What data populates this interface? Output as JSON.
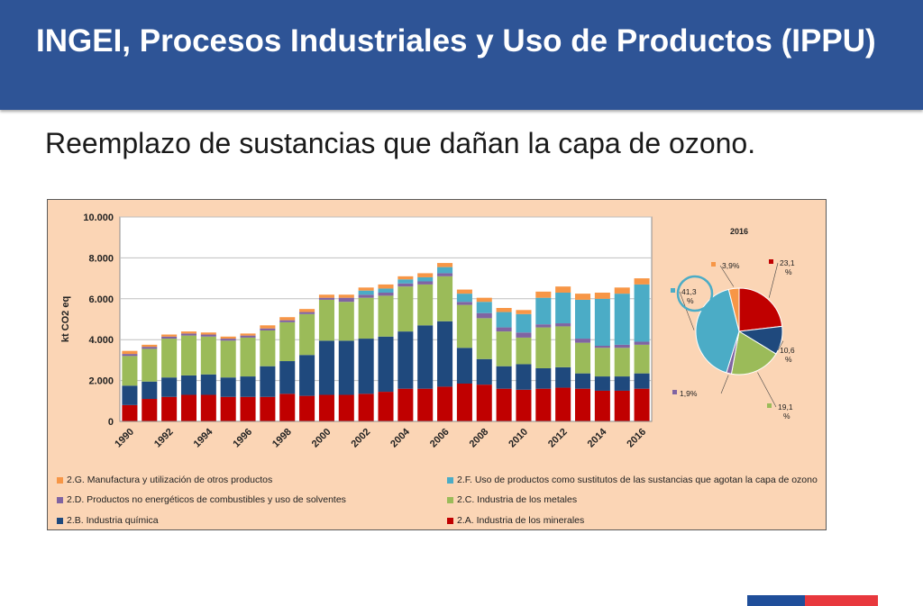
{
  "header": {
    "title": "INGEI, Procesos Industriales y Uso de Productos (IPPU)"
  },
  "subtitle": "Reemplazo de sustancias que dañan la capa de ozono.",
  "colors": {
    "header": "#2e5496",
    "panel": "#fbd5b5",
    "2A": "#c00000",
    "2B": "#1f497d",
    "2C": "#9bbb59",
    "2D": "#8064a2",
    "2F": "#4bacc6",
    "2G": "#f79646"
  },
  "chart_data": [
    {
      "type": "bar",
      "stacked": true,
      "ylabel": "kt CO2 eq",
      "ylim": [
        0,
        10000
      ],
      "yticks": [
        "0",
        "2.000",
        "4.000",
        "6.000",
        "8.000",
        "10.000"
      ],
      "grid": true,
      "legend_position": "bottom",
      "categories": [
        "1990",
        "1991",
        "1992",
        "1993",
        "1994",
        "1995",
        "1996",
        "1997",
        "1998",
        "1999",
        "2000",
        "2001",
        "2002",
        "2003",
        "2004",
        "2005",
        "2006",
        "2007",
        "2008",
        "2009",
        "2010",
        "2011",
        "2012",
        "2013",
        "2014",
        "2015",
        "2016"
      ],
      "xtick_labels": [
        "1990",
        "1992",
        "1994",
        "1996",
        "1998",
        "2000",
        "2002",
        "2004",
        "2006",
        "2008",
        "2010",
        "2012",
        "2014",
        "2016"
      ],
      "series": [
        {
          "name": "2.A. Industria de los minerales",
          "key": "2A",
          "values": [
            800,
            1100,
            1200,
            1300,
            1300,
            1200,
            1200,
            1200,
            1350,
            1250,
            1300,
            1300,
            1350,
            1450,
            1600,
            1600,
            1700,
            1850,
            1800,
            1600,
            1550,
            1600,
            1650,
            1600,
            1500,
            1500,
            1600
          ]
        },
        {
          "name": "2.B. Industria química",
          "key": "2B",
          "values": [
            950,
            850,
            950,
            950,
            1000,
            950,
            1000,
            1500,
            1600,
            2000,
            2650,
            2650,
            2700,
            2700,
            2800,
            3100,
            3200,
            1750,
            1250,
            1100,
            1250,
            1000,
            1000,
            750,
            700,
            700,
            750
          ]
        },
        {
          "name": "2.C. Industria de los metales",
          "key": "2C",
          "values": [
            1450,
            1600,
            1900,
            1950,
            1850,
            1800,
            1900,
            1750,
            1900,
            2000,
            2000,
            1900,
            2000,
            2000,
            2200,
            2000,
            2200,
            2100,
            2000,
            1700,
            1300,
            2000,
            2000,
            1500,
            1400,
            1400,
            1400
          ]
        },
        {
          "name": "2.D. Productos no energéticos de combustibles y uso de solventes",
          "key": "2D",
          "values": [
            100,
            100,
            100,
            100,
            100,
            100,
            100,
            100,
            100,
            100,
            100,
            200,
            150,
            150,
            150,
            150,
            150,
            150,
            250,
            200,
            250,
            150,
            150,
            200,
            100,
            150,
            150
          ]
        },
        {
          "name": "2.F. Uso de productos como sustitutos de las sustancias que agotan la capa de ozono",
          "key": "2F",
          "values": [
            0,
            0,
            0,
            0,
            0,
            0,
            0,
            0,
            0,
            0,
            0,
            0,
            200,
            200,
            200,
            200,
            300,
            400,
            550,
            750,
            900,
            1300,
            1500,
            1900,
            2300,
            2500,
            2800
          ]
        },
        {
          "name": "2.G. Manufactura y utilización de otros productos",
          "key": "2G",
          "values": [
            150,
            100,
            100,
            100,
            100,
            100,
            100,
            150,
            150,
            150,
            150,
            150,
            150,
            200,
            150,
            200,
            200,
            200,
            200,
            200,
            200,
            300,
            300,
            300,
            300,
            300,
            300
          ]
        }
      ]
    },
    {
      "type": "pie",
      "title": "2016",
      "slices": [
        {
          "key": "2A",
          "value": 23.1,
          "label": "23,1 %"
        },
        {
          "key": "2B",
          "value": 10.6,
          "label": "10,6 %"
        },
        {
          "key": "2C",
          "value": 19.1,
          "label": "19,1 %"
        },
        {
          "key": "2D",
          "value": 1.9,
          "label": "1,9%"
        },
        {
          "key": "2F",
          "value": 41.3,
          "label": "41,3 %"
        },
        {
          "key": "2G",
          "value": 3.9,
          "label": "3,9%"
        }
      ]
    }
  ]
}
